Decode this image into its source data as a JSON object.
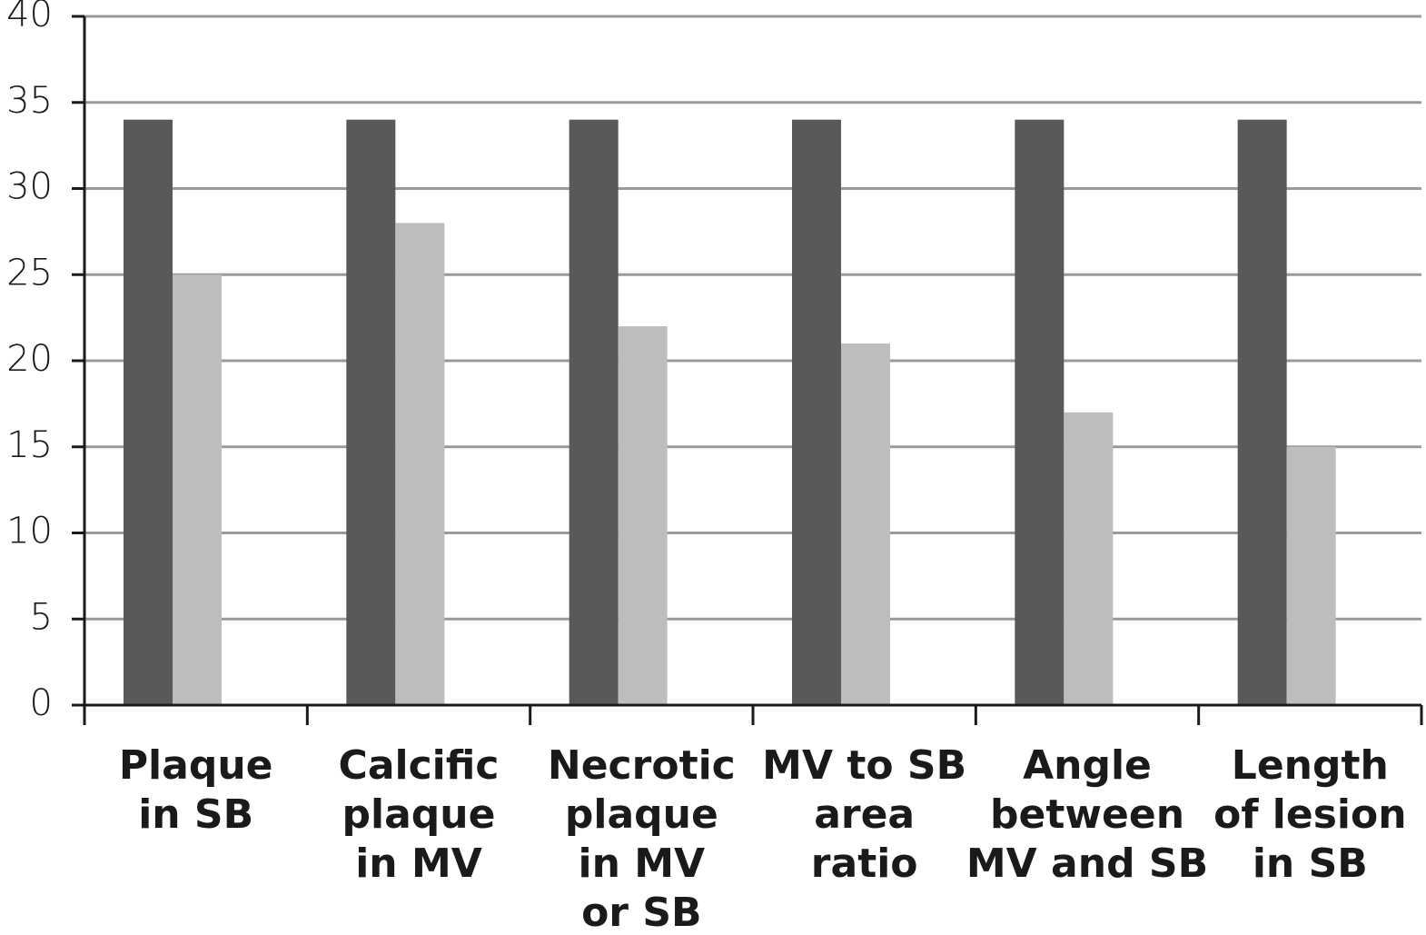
{
  "chart_data": {
    "type": "bar",
    "categories": [
      [
        "Plaque",
        "in SB"
      ],
      [
        "Calcific",
        "plaque",
        "in MV"
      ],
      [
        "Necrotic",
        "plaque",
        "in MV",
        "or SB"
      ],
      [
        "MV to SB",
        "area",
        "ratio"
      ],
      [
        "Angle",
        "between",
        "MV and SB"
      ],
      [
        "Length",
        "of lesion",
        "in SB"
      ]
    ],
    "series": [
      {
        "color": "#58595b",
        "values": [
          34,
          34,
          34,
          34,
          34,
          34
        ]
      },
      {
        "color": "#bcbdbf",
        "values": [
          25,
          28,
          22,
          21,
          17,
          15
        ]
      }
    ],
    "ylim": [
      0,
      40
    ],
    "yticks": [
      0,
      5,
      10,
      15,
      20,
      25,
      30,
      35,
      40
    ],
    "grid": true
  }
}
